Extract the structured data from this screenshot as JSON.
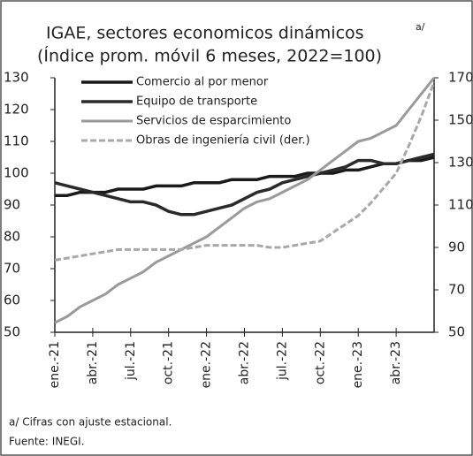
{
  "chart_data": {
    "type": "line",
    "title": "IGAE, sectores economicos dinámicos",
    "title_note": "a/",
    "subtitle": "(Índice prom. móvil 6 meses, 2022=100)",
    "categories": [
      "ene.-21",
      null,
      null,
      "abr.-21",
      null,
      null,
      "jul.-21",
      null,
      null,
      "oct.-21",
      null,
      null,
      "ene.-22",
      null,
      null,
      "abr.-22",
      null,
      null,
      "jul.-22",
      null,
      null,
      "oct.-22",
      null,
      null,
      "ene.-23",
      null,
      null,
      "abr.-23",
      null,
      null,
      null
    ],
    "series": [
      {
        "name": "Comercio al por menor",
        "color": "#1a1a1a",
        "values": [
          93,
          93,
          94,
          94,
          94,
          95,
          95,
          95,
          96,
          96,
          96,
          97,
          97,
          97,
          98,
          98,
          98,
          99,
          99,
          99,
          100,
          100,
          100,
          101,
          101,
          102,
          103,
          103,
          104,
          104,
          105
        ]
      },
      {
        "name": "Equipo de transporte",
        "color": "#2a2a2a",
        "values": [
          97,
          96,
          95,
          94,
          93,
          92,
          91,
          91,
          90,
          88,
          87,
          87,
          88,
          89,
          90,
          92,
          94,
          95,
          97,
          98,
          99,
          100,
          101,
          102,
          104,
          104,
          103,
          103,
          104,
          105,
          106
        ]
      },
      {
        "name": "Servicios de esparcimiento",
        "color": "#9a9a9a",
        "values": [
          53,
          55,
          58,
          60,
          62,
          65,
          67,
          69,
          72,
          74,
          76,
          78,
          80,
          83,
          86,
          89,
          91,
          92,
          94,
          96,
          98,
          101,
          104,
          107,
          110,
          111,
          113,
          115,
          120,
          125,
          130
        ]
      },
      {
        "name": "Obras de ingeniería civil (der.)",
        "color": "#a8a8a8",
        "axis": "y2",
        "dashed": true,
        "values": [
          84,
          85,
          86,
          87,
          88,
          89,
          89,
          89,
          89,
          89,
          89,
          90,
          91,
          91,
          91,
          91,
          91,
          90,
          90,
          91,
          92,
          93,
          97,
          101,
          105,
          111,
          118,
          125,
          138,
          152,
          168
        ]
      }
    ],
    "ylim": [
      50,
      130
    ],
    "yticks": [
      50,
      60,
      70,
      80,
      90,
      100,
      110,
      120,
      130
    ],
    "y2lim": [
      50,
      170
    ],
    "y2ticks": [
      50,
      70,
      90,
      110,
      130,
      150,
      170
    ],
    "footnotes": [
      "a/ Cifras con ajuste estacional.",
      "Fuente: INEGI."
    ]
  }
}
